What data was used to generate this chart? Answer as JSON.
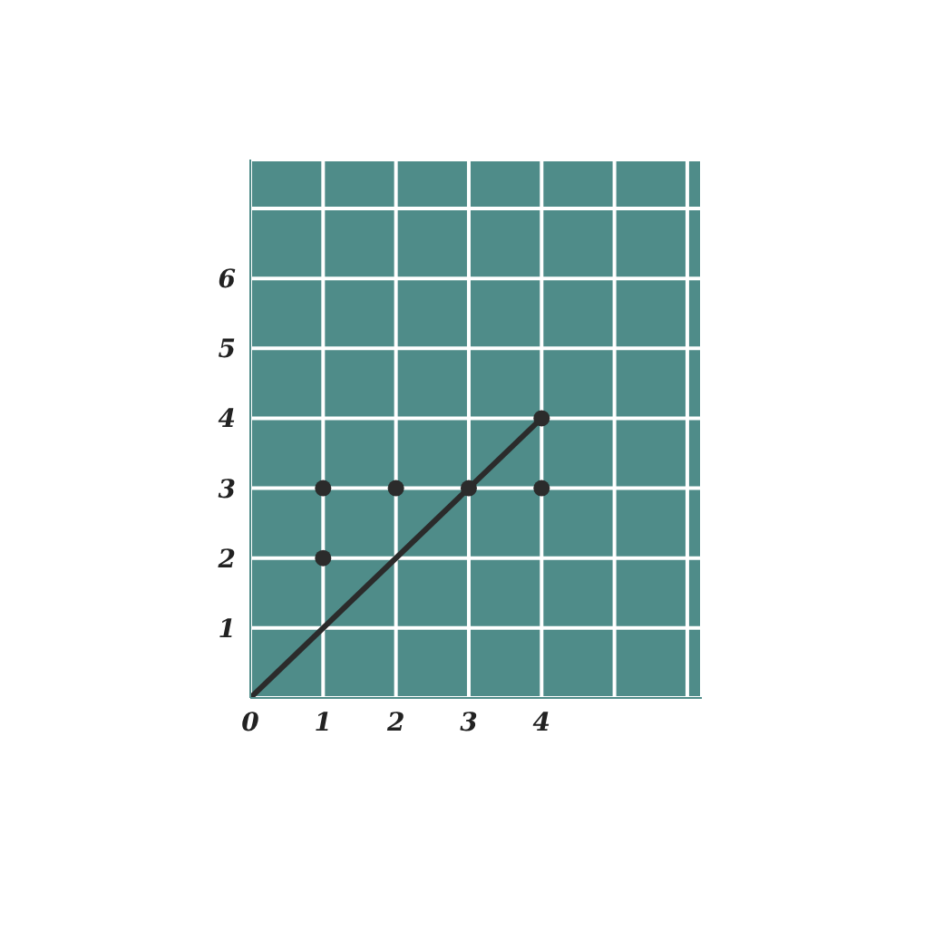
{
  "chart_data": {
    "type": "scatter",
    "xlim": [
      0,
      6.2
    ],
    "ylim": [
      0,
      7.7
    ],
    "xticks": [
      0,
      1,
      2,
      3,
      4,
      {
        "value": 5,
        "label": null
      },
      {
        "value": 6,
        "label": null
      }
    ],
    "yticks": [
      {
        "value": 0,
        "label": null
      },
      1,
      2,
      3,
      4,
      5,
      6,
      {
        "value": 7,
        "label": null
      }
    ],
    "grid": true,
    "series": [
      {
        "marker": "circle",
        "color": "#2b2b2b",
        "x": [
          1,
          1,
          2,
          3,
          4,
          4
        ],
        "values": [
          3,
          2,
          3,
          3,
          4,
          3
        ]
      },
      {
        "type": "line",
        "marker": "none",
        "color": "#2b2b2b",
        "x": [
          0,
          4
        ],
        "values": [
          0,
          4
        ]
      }
    ]
  }
}
